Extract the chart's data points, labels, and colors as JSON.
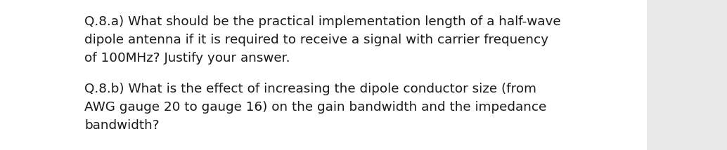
{
  "background_color": "#e8e8e8",
  "text_color": "#1a1a1a",
  "box_color": "#ffffff",
  "paragraph1_line1": "Q.8.a) What should be the practical implementation length of a half-wave",
  "paragraph1_line2": "dipole antenna if it is required to receive a signal with carrier frequency",
  "paragraph1_line3": "of 100MHz? Justify your answer.",
  "paragraph2_line1": "Q.8.b) What is the effect of increasing the dipole conductor size (from",
  "paragraph2_line2": "AWG gauge 20 to gauge 16) on the gain bandwidth and the impedance",
  "paragraph2_line3": "bandwidth?",
  "font_size": 13.2,
  "font_family": "DejaVu Sans",
  "fig_width": 10.34,
  "fig_height": 2.14,
  "dpi": 100
}
